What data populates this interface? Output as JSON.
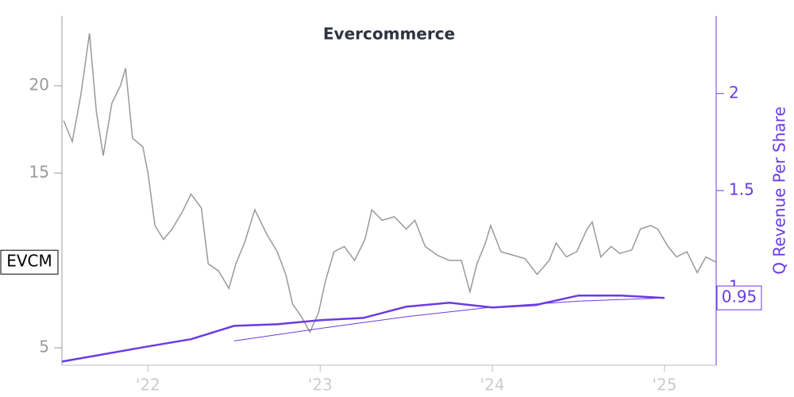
{
  "chart_data": {
    "type": "line",
    "title": "Evercommerce",
    "y2_label": "Q Revenue Per Share",
    "xlim": [
      2021.5,
      2025.3
    ],
    "xticks": [
      {
        "value": 2022,
        "label": "'22"
      },
      {
        "value": 2023,
        "label": "'23"
      },
      {
        "value": 2024,
        "label": "'24"
      },
      {
        "value": 2025,
        "label": "'25"
      }
    ],
    "ylim": [
      4,
      24
    ],
    "yticks": [
      5,
      15,
      20
    ],
    "y2lim": [
      0.6,
      2.4
    ],
    "y2ticks": [
      1.0,
      1.5,
      2.0
    ],
    "series": [
      {
        "name": "EVCM",
        "color": "#999999",
        "x": [
          2021.51,
          2021.56,
          2021.61,
          2021.66,
          2021.7,
          2021.74,
          2021.79,
          2021.84,
          2021.87,
          2021.91,
          2021.97,
          2022.0,
          2022.04,
          2022.09,
          2022.14,
          2022.2,
          2022.25,
          2022.31,
          2022.35,
          2022.41,
          2022.47,
          2022.51,
          2022.56,
          2022.62,
          2022.69,
          2022.75,
          2022.8,
          2022.84,
          2022.89,
          2022.94,
          2022.99,
          2023.03,
          2023.08,
          2023.14,
          2023.2,
          2023.26,
          2023.3,
          2023.36,
          2023.43,
          2023.5,
          2023.55,
          2023.61,
          2023.68,
          2023.75,
          2023.82,
          2023.87,
          2023.91,
          2023.96,
          2023.99,
          2024.05,
          2024.12,
          2024.19,
          2024.26,
          2024.33,
          2024.37,
          2024.43,
          2024.49,
          2024.55,
          2024.58,
          2024.63,
          2024.69,
          2024.74,
          2024.81,
          2024.86,
          2024.92,
          2024.96,
          2025.02,
          2025.07,
          2025.13,
          2025.19,
          2025.24,
          2025.3
        ],
        "values": [
          18,
          16.8,
          19.5,
          23,
          18.5,
          16,
          19,
          20,
          21,
          17,
          16.5,
          15,
          12,
          11.2,
          11.8,
          12.8,
          13.8,
          13,
          9.8,
          9.4,
          8.4,
          9.8,
          11,
          12.9,
          11.5,
          10.5,
          9.2,
          7.5,
          6.8,
          5.9,
          7,
          8.8,
          10.5,
          10.8,
          10,
          11.2,
          12.9,
          12.3,
          12.5,
          11.8,
          12.3,
          10.8,
          10.3,
          10,
          10,
          8.2,
          9.8,
          11,
          12,
          10.5,
          10.3,
          10.1,
          9.2,
          10,
          11,
          10.2,
          10.5,
          11.8,
          12.2,
          10.2,
          10.8,
          10.4,
          10.6,
          11.8,
          12,
          11.8,
          10.8,
          10.2,
          10.5,
          9.3,
          10.2,
          9.9
        ]
      },
      {
        "color": "#6a3be4",
        "axis": "y2",
        "width": 2.5,
        "x": [
          2021.5,
          2022.0,
          2022.25,
          2022.5,
          2022.75,
          2023.0,
          2023.25,
          2023.5,
          2023.75,
          2024.0,
          2024.25,
          2024.5,
          2024.75,
          2025.0
        ],
        "values": [
          0.619,
          0.697,
          0.734,
          0.803,
          0.811,
          0.832,
          0.844,
          0.902,
          0.922,
          0.898,
          0.91,
          0.959,
          0.959,
          0.947
        ],
        "value_labels": [
          null,
          null,
          null,
          null,
          null,
          null,
          null,
          null,
          null,
          null,
          null,
          null,
          null,
          "0.95"
        ]
      },
      {
        "color": "#6a3be4",
        "axis": "y2",
        "width": 1,
        "x": [
          2022.5,
          2023.0,
          2023.5,
          2024.0,
          2024.5,
          2025.0
        ],
        "values": [
          0.725,
          0.79,
          0.85,
          0.9,
          0.93,
          0.947
        ]
      }
    ]
  }
}
